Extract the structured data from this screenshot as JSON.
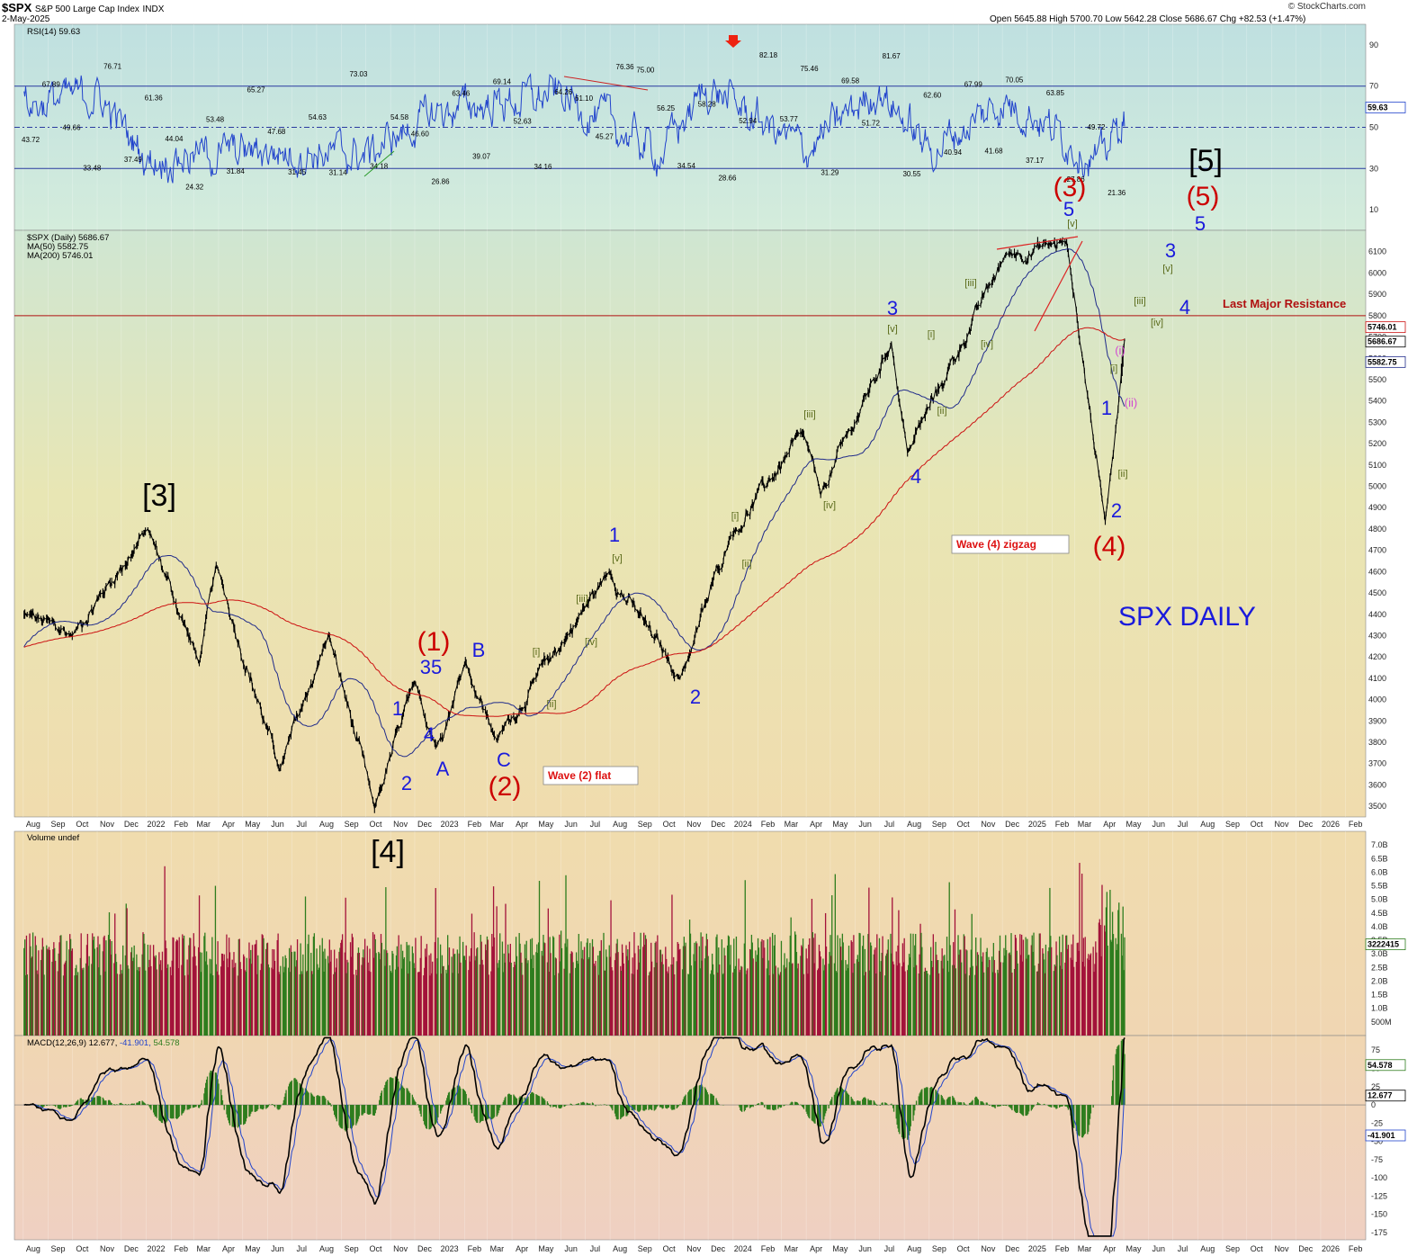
{
  "header": {
    "symbol": "$SPX",
    "name": "S&P 500 Large Cap Index",
    "exchange": "INDX",
    "date": "2-May-2025",
    "ohlc": "Open 5645.88  High 5700.70  Low 5642.28  Close 5686.67  Chg +82.53 (+1.47%)",
    "watermark": "© StockCharts.com"
  },
  "panels": {
    "rsi": {
      "label": "RSI(14) 59.63",
      "current": "59.63",
      "ticks": [
        "90",
        "70",
        "50",
        "30",
        "10"
      ]
    },
    "price": {
      "label": "$SPX (Daily) 5686.67",
      "ma50_label": "MA(50) 5582.75",
      "ma200_label": "MA(200) 5746.01",
      "ticks": [
        "6100",
        "6000",
        "5900",
        "5800",
        "5700",
        "5600",
        "5500",
        "5400",
        "5300",
        "5200",
        "5100",
        "5000",
        "4900",
        "4800",
        "4700",
        "4600",
        "4500",
        "4400",
        "4300",
        "4200",
        "4100",
        "4000",
        "3900",
        "3800",
        "3700",
        "3600",
        "3500"
      ],
      "current_tags": [
        "5746.01",
        "5686.67",
        "5582.75"
      ]
    },
    "volume": {
      "label": "Volume undef",
      "ticks": [
        "7.0B",
        "6.5B",
        "6.0B",
        "5.5B",
        "5.0B",
        "4.5B",
        "4.0B",
        "3.5B",
        "3.0B",
        "2.5B",
        "2.0B",
        "1.5B",
        "1.0B",
        "500M"
      ],
      "current": "3222415"
    },
    "macd": {
      "label_main": "MACD(12,26,9) 12.677, ",
      "label_signal": "-41.901, ",
      "label_hist": "54.578",
      "ticks": [
        "75",
        "50",
        "25",
        "0",
        "-25",
        "-50",
        "-75",
        "-100",
        "-125",
        "-150",
        "-175"
      ],
      "current_tags": [
        "54.578",
        "12.677",
        "-41.901"
      ]
    }
  },
  "x_axis": [
    "Aug",
    "Sep",
    "Oct",
    "Nov",
    "Dec",
    "2022",
    "Feb",
    "Mar",
    "Apr",
    "May",
    "Jun",
    "Jul",
    "Aug",
    "Sep",
    "Oct",
    "Nov",
    "Dec",
    "2023",
    "Feb",
    "Mar",
    "Apr",
    "May",
    "Jun",
    "Jul",
    "Aug",
    "Sep",
    "Oct",
    "Nov",
    "Dec",
    "2024",
    "Feb",
    "Mar",
    "Apr",
    "May",
    "Jun",
    "Jul",
    "Aug",
    "Sep",
    "Oct",
    "Nov",
    "Dec",
    "2025",
    "Feb",
    "Mar",
    "Apr",
    "May",
    "Jun",
    "Jul",
    "Aug",
    "Sep",
    "Oct",
    "Nov",
    "Dec",
    "2026",
    "Feb"
  ],
  "rsi_annotations": [
    "43.72",
    "67.89",
    "49.66",
    "33.48",
    "76.71",
    "37.49",
    "61.36",
    "44.04",
    "24.32",
    "53.48",
    "31.84",
    "65.27",
    "47.68",
    "31.45",
    "54.63",
    "31.14",
    "73.03",
    "34.18",
    "54.58",
    "46.60",
    "26.86",
    "63.46",
    "39.07",
    "69.14",
    "52.63",
    "34.16",
    "64.26",
    "61.10",
    "45.27",
    "76.36",
    "75.00",
    "56.25",
    "34.54",
    "58.28",
    "28.66",
    "52.94",
    "82.18",
    "53.77",
    "75.46",
    "31.29",
    "69.58",
    "51.72",
    "81.67",
    "30.55",
    "62.60",
    "40.94",
    "67.99",
    "41.68",
    "70.05",
    "37.17",
    "63.85",
    "27.86",
    "49.72",
    "21.36"
  ],
  "wave_labels": {
    "black": [
      "[3]",
      "[4]",
      "[5]"
    ],
    "red": [
      "(1)",
      "(2)",
      "(3)",
      "(4)",
      "(5)"
    ],
    "blue": [
      "1",
      "2",
      "35",
      "4",
      "A",
      "B",
      "C",
      "1",
      "2",
      "3",
      "4",
      "5",
      "1",
      "2",
      "3",
      "4",
      "5"
    ],
    "green": [
      "[i]",
      "[ii]",
      "[iii]",
      "[iv]",
      "[v]",
      "[i]",
      "[ii]",
      "[iii]",
      "[iv]",
      "[v]",
      "[i]",
      "[ii]",
      "[iii]",
      "[iv]",
      "[v]",
      "[i]",
      "[ii]",
      "[iii]",
      "[iv]",
      "[v]"
    ],
    "pink": [
      "(i)",
      "(ii)"
    ]
  },
  "boxes": {
    "wave2": "Wave (2) flat",
    "wave4": "Wave (4) zigzag"
  },
  "resistance_label": "Last Major Resistance",
  "title_text": "SPX DAILY",
  "colors": {
    "price": "#000000",
    "ma50": "#1f2a8a",
    "ma200": "#cc1111",
    "rsi": "#2244cc",
    "vol_up": "#2e7d1e",
    "vol_down": "#a3123a",
    "wave_red": "#cc0000",
    "wave_blue": "#1a1adc",
    "wave_green": "#5a6a1a",
    "wave_pink": "#d24ad2"
  },
  "chart_data": [
    {
      "type": "line",
      "title": "RSI(14)",
      "current": 59.63,
      "ylim": [
        0,
        100
      ],
      "levels": [
        30,
        50,
        70
      ],
      "x": [
        "2021-08",
        "2021-11",
        "2022-01",
        "2022-06",
        "2022-10",
        "2023-01",
        "2023-06",
        "2023-10",
        "2023-12",
        "2024-04",
        "2024-07",
        "2024-09",
        "2024-12",
        "2025-01",
        "2025-04",
        "2025-05"
      ],
      "values": [
        67.89,
        76.71,
        24.32,
        31.14,
        26.86,
        63.46,
        76.36,
        28.66,
        82.18,
        31.29,
        81.67,
        30.55,
        70.05,
        63.85,
        21.36,
        59.63
      ]
    },
    {
      "type": "line",
      "title": "$SPX (Daily)",
      "ylim": [
        3450,
        6200
      ],
      "ma50": 5582.75,
      "ma200": 5746.01,
      "close": 5686.67,
      "resistance": 5800,
      "x": [
        "2021-08",
        "2021-10",
        "2022-01-03",
        "2022-03-08",
        "2022-03-29",
        "2022-06-16",
        "2022-08-16",
        "2022-10-12",
        "2022-12-01",
        "2022-12-28",
        "2023-02-02",
        "2023-03-13",
        "2023-07-31",
        "2023-10-27",
        "2023-12-29",
        "2024-03-28",
        "2024-04-19",
        "2024-07-16",
        "2024-08-05",
        "2024-12-06",
        "2025-02-19",
        "2025-04-08",
        "2025-05-02"
      ],
      "values": [
        4400,
        4300,
        4800,
        4170,
        4630,
        3670,
        4305,
        3490,
        4080,
        3780,
        4180,
        3810,
        4600,
        4100,
        4770,
        5250,
        4960,
        5670,
        5160,
        6090,
        6144,
        4835,
        5686.67
      ]
    },
    {
      "type": "bar",
      "title": "Volume",
      "ylim": [
        0,
        7500000000
      ],
      "current": 3222415
    },
    {
      "type": "line",
      "title": "MACD(12,26,9)",
      "ylim": [
        -185,
        95
      ],
      "macd": 12.677,
      "signal": -41.901,
      "histogram": 54.578
    }
  ]
}
